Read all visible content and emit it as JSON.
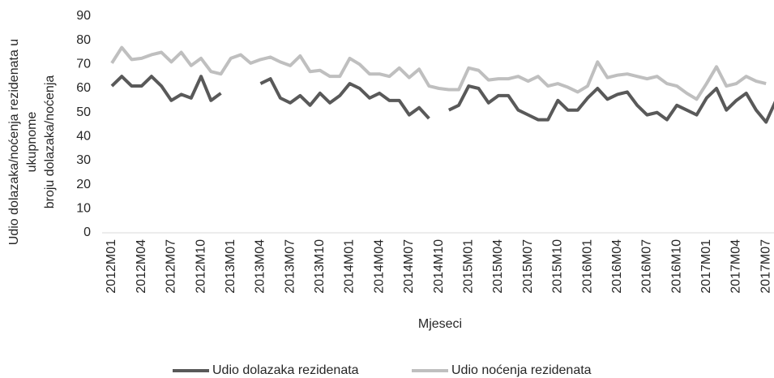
{
  "chart_data": {
    "type": "line",
    "y_label": [
      "Udio dolazaka/noćenja rezidenata u",
      "ukupnome",
      "broju dolazaka/noćenja"
    ],
    "x_label": "Mjeseci",
    "categories": [
      "2012M01",
      null,
      null,
      "2012M04",
      null,
      null,
      "2012M07",
      null,
      null,
      "2012M10",
      null,
      null,
      "2013M01",
      null,
      null,
      "2013M04",
      null,
      null,
      "2013M07",
      null,
      null,
      "2013M10",
      null,
      null,
      "2014M01",
      null,
      null,
      "2014M04",
      null,
      null,
      "2014M07",
      null,
      null,
      "2014M10",
      null,
      null,
      "2015M01",
      null,
      null,
      "2015M04",
      null,
      null,
      "2015M07",
      null,
      null,
      "2015M10",
      null,
      null,
      "2016M01",
      null,
      null,
      "2016M04",
      null,
      null,
      "2016M07",
      null,
      null,
      "2016M10",
      null,
      null,
      "2017M01",
      null,
      null,
      "2017M04",
      null,
      null,
      "2017M07",
      null
    ],
    "series": [
      {
        "name": "Udio dolazaka rezidenata",
        "color": "#595959",
        "values": [
          61,
          65,
          61,
          61,
          65,
          61,
          55,
          57.5,
          56,
          65,
          55,
          58,
          null,
          null,
          null,
          62,
          64,
          56,
          54,
          57,
          53,
          58,
          54,
          57,
          62,
          60,
          56,
          58,
          55,
          55,
          49,
          52,
          47.5,
          null,
          51,
          53,
          61,
          60,
          54,
          57,
          57,
          51,
          49,
          47,
          47,
          55,
          51,
          51,
          56,
          60,
          55.5,
          57.5,
          58.5,
          53,
          49,
          50,
          47,
          53,
          51,
          49,
          56,
          60,
          51,
          55,
          58,
          51,
          46,
          55
        ]
      },
      {
        "name": "Udio noćenja rezidenata",
        "color": "#bfbfbf",
        "values": [
          70.5,
          77,
          72,
          72.5,
          74,
          75,
          71,
          75,
          69.5,
          72.5,
          67,
          66,
          72.5,
          74,
          70.5,
          72,
          73,
          71,
          69.5,
          73.5,
          67,
          67.5,
          65,
          65,
          72.5,
          70,
          66,
          66,
          65,
          68.5,
          64.5,
          68,
          61,
          60,
          59.5,
          59.5,
          68.5,
          67.5,
          63.5,
          64,
          64,
          65,
          63,
          65,
          61,
          62,
          60.5,
          58.5,
          61,
          71,
          64.5,
          65.5,
          66,
          65,
          64,
          65,
          62,
          61,
          58,
          55.5,
          62,
          69,
          61,
          62,
          65,
          63,
          62,
          null
        ]
      }
    ],
    "ylim": [
      0,
      90
    ],
    "yticks": [
      0,
      10,
      20,
      30,
      40,
      50,
      60,
      70,
      80,
      90
    ],
    "grid": false,
    "legend": "bottom"
  }
}
